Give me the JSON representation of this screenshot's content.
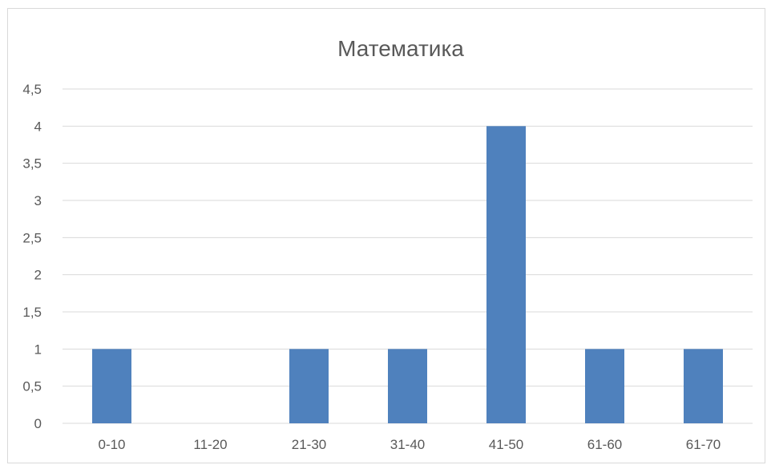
{
  "chart_data": {
    "type": "bar",
    "title": "Математика",
    "categories": [
      "0-10",
      "11-20",
      "21-30",
      "31-40",
      "41-50",
      "61-60",
      "61-70"
    ],
    "values": [
      1,
      0,
      1,
      1,
      4,
      1,
      1
    ],
    "y_ticks": [
      "0",
      "0,5",
      "1",
      "1,5",
      "2",
      "2,5",
      "3",
      "3,5",
      "4",
      "4,5"
    ],
    "ylim": [
      0,
      4.5
    ],
    "grid": true,
    "legend": "none",
    "bar_color": "#4f81bd",
    "gridline_color": "#d9d9d9",
    "text_color": "#595959"
  }
}
